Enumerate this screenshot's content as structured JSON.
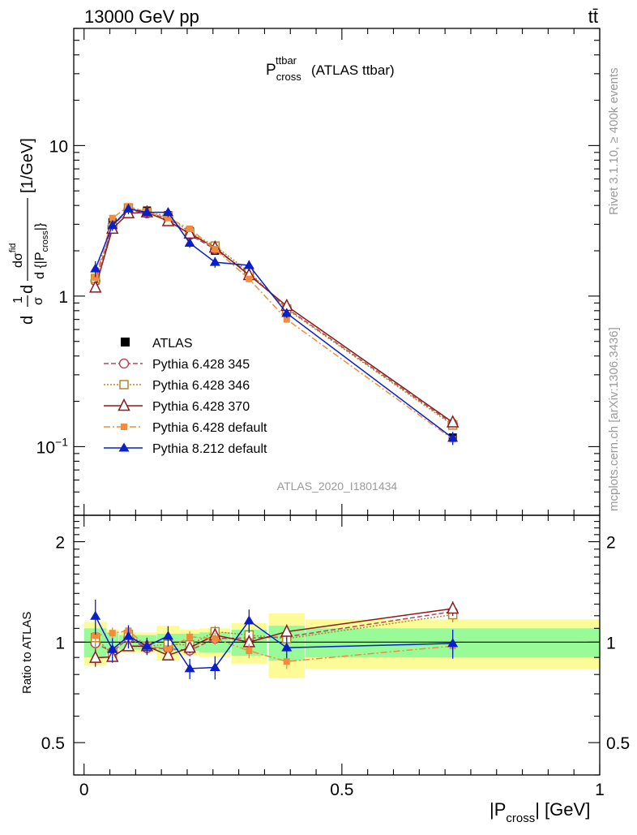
{
  "header": {
    "energy_label": "13000 GeV pp",
    "process_label": "tt̄",
    "title_main": "P",
    "title_sup": "ttbar",
    "title_sub": "cross",
    "title_suffix": "(ATLAS ttbar)",
    "analysis_id": "ATLAS_2020_I1801434",
    "rivet_label": "Rivet 3.1.10, ≥ 400k events",
    "mcplots_label": "mcplots.cern.ch [arXiv:1306.3436]"
  },
  "chart_data": [
    {
      "type": "line",
      "panel": "main",
      "title": "P_cross^ttbar (ATLAS ttbar)",
      "ylabel": "1/σ dσ^{fid}/d{|P_cross|} [1/GeV]",
      "ylabel_parts": {
        "lead": "d",
        "frac1_num": "1",
        "frac1_den": "σ",
        "mid": "d",
        "frac2_num": "dσ",
        "frac2_num_sup": "fid",
        "frac2_den": "d {|P",
        "frac2_den_sub": "cross",
        "frac2_den_tail": "|}",
        "unit": "[1/GeV]"
      },
      "yscale": "log",
      "ylim": [
        0.035,
        60
      ],
      "xlim": [
        -0.02,
        1.0
      ],
      "y_ticks": [
        {
          "value": 10,
          "label": "10"
        },
        {
          "value": 1,
          "label": "1"
        },
        {
          "value": 0.1,
          "label": "10",
          "sup": "−1"
        }
      ],
      "legend_position": "lower-left",
      "x": [
        0.022,
        0.055,
        0.086,
        0.122,
        0.163,
        0.205,
        0.254,
        0.32,
        0.393,
        0.715
      ],
      "x_widths": [
        0.022,
        0.012,
        0.018,
        0.018,
        0.022,
        0.022,
        0.03,
        0.034,
        0.035,
        0.286
      ],
      "reference": {
        "name": "ATLAS",
        "values": [
          1.27,
          3.1,
          3.65,
          3.7,
          3.45,
          2.7,
          2.0,
          1.38,
          0.8,
          0.115
        ],
        "rel_stat_err": [
          0.03,
          0.02,
          0.02,
          0.02,
          0.02,
          0.02,
          0.02,
          0.03,
          0.04,
          0.05
        ],
        "band_inner": [
          0.1,
          0.07,
          0.05,
          0.05,
          0.06,
          0.06,
          0.07,
          0.09,
          0.12,
          0.1
        ],
        "band_outer": [
          0.15,
          0.09,
          0.07,
          0.07,
          0.12,
          0.09,
          0.1,
          0.14,
          0.22,
          0.17
        ]
      },
      "series": [
        {
          "name": "Pythia 6.428 345",
          "color": "#b5485c",
          "marker": "circle-open",
          "dash": "6,3",
          "values": [
            1.26,
            2.9,
            3.75,
            3.55,
            3.3,
            2.55,
            2.05,
            1.42,
            0.83,
            0.142
          ],
          "rel_err": [
            0.06,
            0.04,
            0.03,
            0.03,
            0.03,
            0.04,
            0.04,
            0.05,
            0.05,
            0.05
          ]
        },
        {
          "name": "Pythia 6.428 346",
          "color": "#b0892a",
          "marker": "square-open",
          "dash": "2,2",
          "values": [
            1.31,
            2.85,
            3.85,
            3.6,
            3.4,
            2.65,
            2.15,
            1.45,
            0.82,
            0.139
          ],
          "rel_err": [
            0.06,
            0.04,
            0.03,
            0.03,
            0.03,
            0.04,
            0.04,
            0.05,
            0.05,
            0.05
          ]
        },
        {
          "name": "Pythia 6.428 370",
          "color": "#8b1a1a",
          "marker": "triangle-open",
          "dash": "",
          "values": [
            1.14,
            2.8,
            3.55,
            3.6,
            3.15,
            2.6,
            2.1,
            1.38,
            0.86,
            0.145
          ],
          "rel_err": [
            0.06,
            0.04,
            0.03,
            0.03,
            0.03,
            0.04,
            0.04,
            0.05,
            0.05,
            0.05
          ]
        },
        {
          "name": "Pythia 6.428 default",
          "color": "#f28c3c",
          "marker": "square-filled",
          "dash": "8,3,2,3",
          "values": [
            1.33,
            3.3,
            3.95,
            3.6,
            3.3,
            2.8,
            2.05,
            1.3,
            0.7,
            0.112
          ],
          "rel_err": [
            0.06,
            0.04,
            0.03,
            0.03,
            0.03,
            0.04,
            0.04,
            0.05,
            0.05,
            0.05
          ]
        },
        {
          "name": "Pythia 8.212 default",
          "color": "#0a1fcc",
          "marker": "triangle-filled",
          "dash": "",
          "values": [
            1.52,
            2.95,
            3.8,
            3.6,
            3.6,
            2.25,
            1.68,
            1.6,
            0.77,
            0.114
          ],
          "rel_err": [
            0.12,
            0.08,
            0.08,
            0.06,
            0.07,
            0.07,
            0.08,
            0.08,
            0.07,
            0.1
          ]
        }
      ]
    },
    {
      "type": "line",
      "panel": "ratio",
      "ylabel": "Ratio to ATLAS",
      "xlabel": "|P_cross| [GeV]",
      "xlabel_parts": {
        "pre": "|P",
        "sub": "cross",
        "post": "| [GeV]"
      },
      "xlim": [
        -0.02,
        1.0
      ],
      "ylim": [
        0.4,
        2.4
      ],
      "yscale": "log",
      "reference_line": 1.0,
      "x_ticks": [
        {
          "value": 0,
          "label": "0"
        },
        {
          "value": 0.5,
          "label": "0.5"
        },
        {
          "value": 1,
          "label": "1"
        }
      ],
      "y_ticks": [
        {
          "value": 2,
          "label": "2"
        },
        {
          "value": 1,
          "label": "1"
        },
        {
          "value": 0.5,
          "label": "0.5"
        }
      ]
    }
  ]
}
